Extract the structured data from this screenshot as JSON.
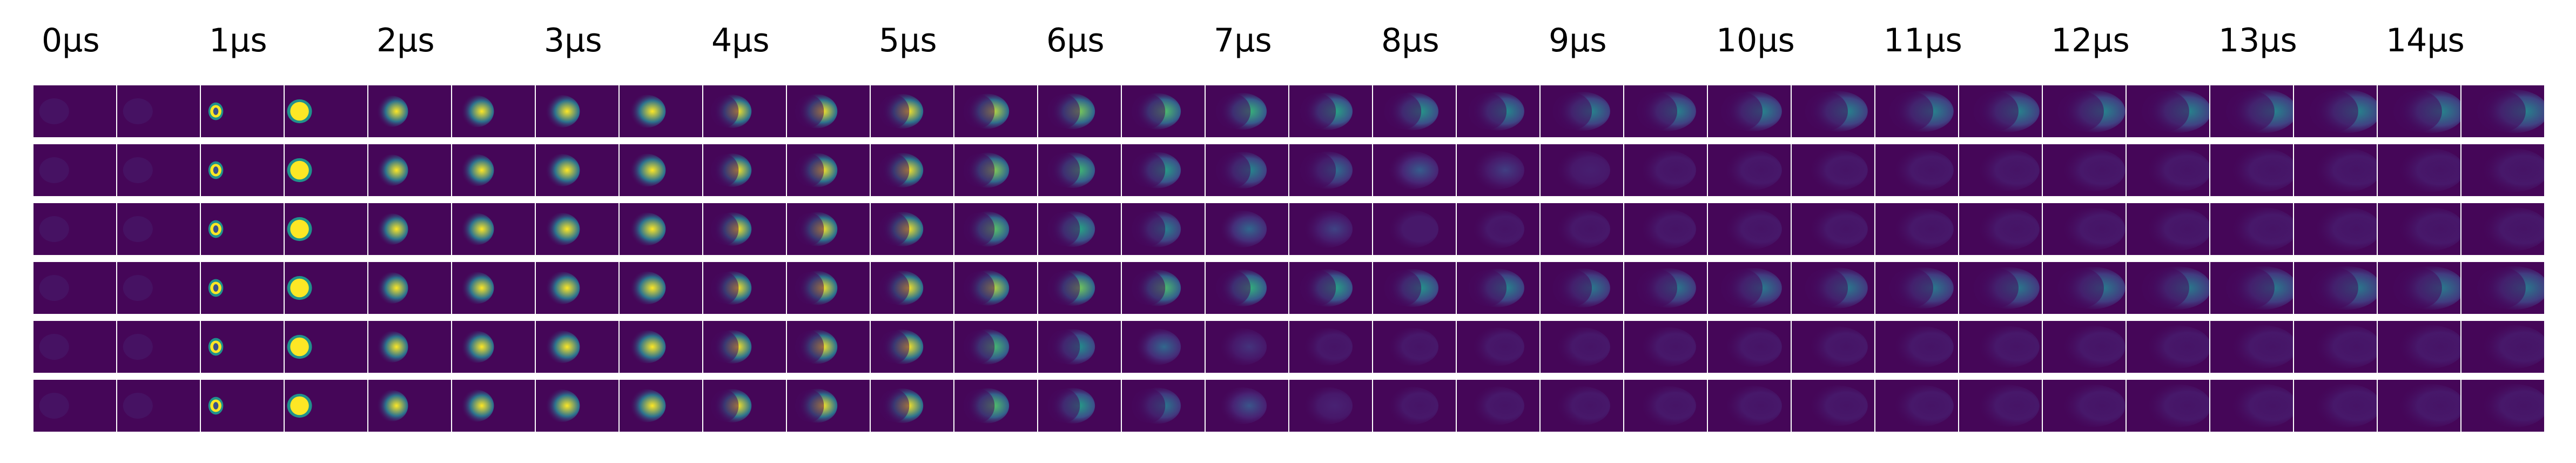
{
  "time_labels": [
    "0µs",
    "1µs",
    "2µs",
    "3µs",
    "4µs",
    "5µs",
    "6µs",
    "7µs",
    "8µs",
    "9µs",
    "10µs",
    "11µs",
    "12µs",
    "13µs",
    "14µs"
  ],
  "rows": 6,
  "frames_per_row": 30,
  "colormap": "viridis",
  "colors": {
    "background": "#440154",
    "peak": "#fde725",
    "mid": "#21918c",
    "border": "#ffffff"
  }
}
